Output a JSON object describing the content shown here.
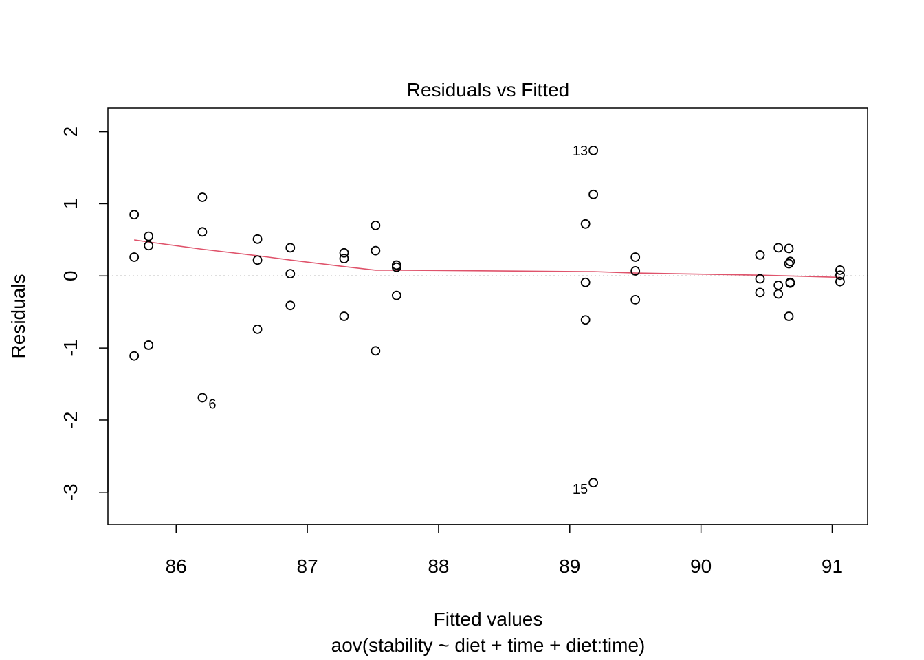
{
  "chart_data": {
    "type": "scatter",
    "title": "Residuals vs Fitted",
    "xlabel": "Fitted values",
    "subtitle": "aov(stability ~ diet + time + diet:time)",
    "ylabel": "Residuals",
    "xlim": [
      85.48,
      91.27
    ],
    "ylim": [
      -3.45,
      2.33
    ],
    "x_ticks": [
      86,
      87,
      88,
      89,
      90,
      91
    ],
    "y_ticks": [
      -3,
      -2,
      -1,
      0,
      1,
      2
    ],
    "x_tick_labels": [
      "86",
      "87",
      "88",
      "89",
      "90",
      "91"
    ],
    "y_tick_labels": [
      "-3",
      "-2",
      "-1",
      "0",
      "1",
      "2"
    ],
    "grid": false,
    "zero_reference_line": {
      "y": 0,
      "style": "dotted",
      "color": "#bebebe"
    },
    "colors": {
      "points": "#000000",
      "smoother": "#df536b"
    },
    "points": [
      {
        "x": 85.68,
        "y": 0.85
      },
      {
        "x": 85.68,
        "y": 0.26
      },
      {
        "x": 85.68,
        "y": -1.11
      },
      {
        "x": 85.79,
        "y": 0.55
      },
      {
        "x": 85.79,
        "y": 0.42
      },
      {
        "x": 85.79,
        "y": -0.96
      },
      {
        "x": 86.2,
        "y": 1.09
      },
      {
        "x": 86.2,
        "y": 0.61
      },
      {
        "x": 86.2,
        "y": -1.69,
        "label": "6"
      },
      {
        "x": 86.62,
        "y": 0.51
      },
      {
        "x": 86.62,
        "y": 0.22
      },
      {
        "x": 86.62,
        "y": -0.74
      },
      {
        "x": 86.87,
        "y": 0.39
      },
      {
        "x": 86.87,
        "y": 0.03
      },
      {
        "x": 86.87,
        "y": -0.41
      },
      {
        "x": 87.28,
        "y": 0.32
      },
      {
        "x": 87.28,
        "y": 0.24
      },
      {
        "x": 87.28,
        "y": -0.56
      },
      {
        "x": 87.52,
        "y": 0.7
      },
      {
        "x": 87.52,
        "y": 0.35
      },
      {
        "x": 87.52,
        "y": -1.04
      },
      {
        "x": 87.68,
        "y": 0.15
      },
      {
        "x": 87.68,
        "y": 0.12
      },
      {
        "x": 87.68,
        "y": -0.27
      },
      {
        "x": 89.12,
        "y": 0.72
      },
      {
        "x": 89.12,
        "y": -0.09
      },
      {
        "x": 89.12,
        "y": -0.61
      },
      {
        "x": 89.18,
        "y": 1.74,
        "label": "13"
      },
      {
        "x": 89.18,
        "y": 1.13
      },
      {
        "x": 89.18,
        "y": -2.87,
        "label": "15"
      },
      {
        "x": 89.5,
        "y": 0.26
      },
      {
        "x": 89.5,
        "y": 0.07
      },
      {
        "x": 89.5,
        "y": -0.33
      },
      {
        "x": 90.45,
        "y": 0.29
      },
      {
        "x": 90.45,
        "y": -0.04
      },
      {
        "x": 90.45,
        "y": -0.23
      },
      {
        "x": 90.59,
        "y": 0.39
      },
      {
        "x": 90.59,
        "y": -0.13
      },
      {
        "x": 90.59,
        "y": -0.25
      },
      {
        "x": 90.67,
        "y": 0.38
      },
      {
        "x": 90.67,
        "y": 0.17
      },
      {
        "x": 90.67,
        "y": -0.56
      },
      {
        "x": 90.68,
        "y": 0.2
      },
      {
        "x": 90.68,
        "y": -0.09
      },
      {
        "x": 90.68,
        "y": -0.1
      },
      {
        "x": 91.06,
        "y": 0.08
      },
      {
        "x": 91.06,
        "y": 0.01
      },
      {
        "x": 91.06,
        "y": -0.08
      }
    ],
    "smoother": [
      {
        "x": 85.68,
        "y": 0.5
      },
      {
        "x": 85.79,
        "y": 0.47
      },
      {
        "x": 86.2,
        "y": 0.37
      },
      {
        "x": 86.62,
        "y": 0.28
      },
      {
        "x": 86.87,
        "y": 0.22
      },
      {
        "x": 87.28,
        "y": 0.13
      },
      {
        "x": 87.52,
        "y": 0.08
      },
      {
        "x": 87.68,
        "y": 0.08
      },
      {
        "x": 89.12,
        "y": 0.06
      },
      {
        "x": 89.18,
        "y": 0.06
      },
      {
        "x": 89.5,
        "y": 0.04
      },
      {
        "x": 90.45,
        "y": 0.01
      },
      {
        "x": 90.67,
        "y": 0.0
      },
      {
        "x": 91.06,
        "y": -0.02
      }
    ]
  }
}
